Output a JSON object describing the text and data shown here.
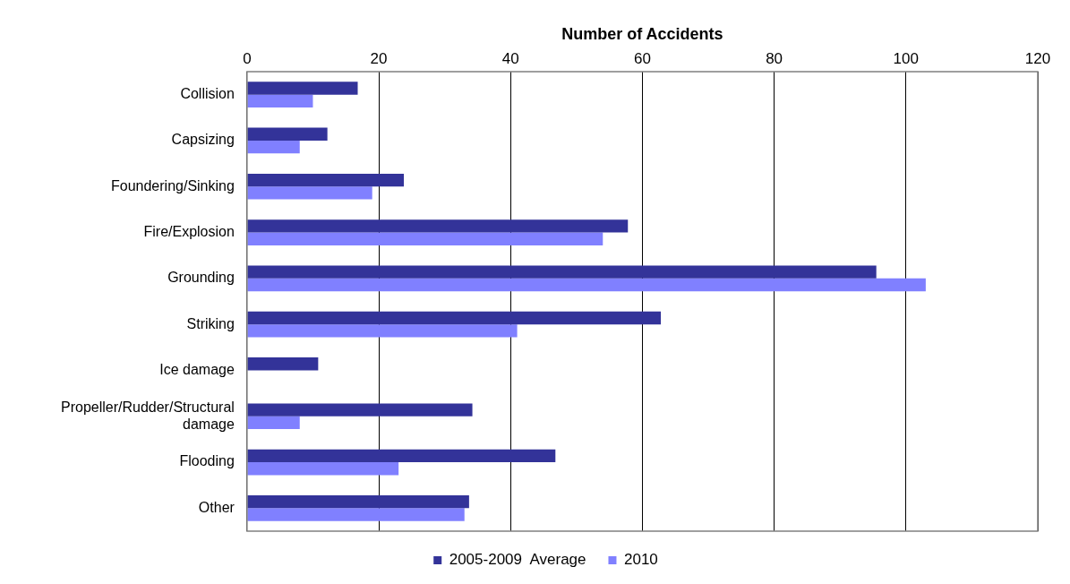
{
  "chart_data": {
    "type": "bar",
    "orientation": "horizontal",
    "xlabel": "Number of Accidents",
    "categories": [
      "Collision",
      "Capsizing",
      "Foundering/Sinking",
      "Fire/Explosion",
      "Grounding",
      "Striking",
      "Ice damage",
      "Propeller/Rudder/Structural damage",
      "Flooding",
      "Other"
    ],
    "series": [
      {
        "name": "2005-2009  Average",
        "color": "#333399",
        "values": [
          16.8,
          12.2,
          23.8,
          57.8,
          95.5,
          62.8,
          10.8,
          34.2,
          46.8,
          33.7
        ]
      },
      {
        "name": "2010",
        "color": "#8080ff",
        "values": [
          10,
          8,
          19,
          54,
          103,
          41,
          0,
          8,
          23,
          33
        ]
      }
    ],
    "xlim": [
      0,
      120
    ],
    "xticks": [
      0,
      20,
      40,
      60,
      80,
      100,
      120
    ],
    "grid": "x",
    "legend": "bottom"
  }
}
